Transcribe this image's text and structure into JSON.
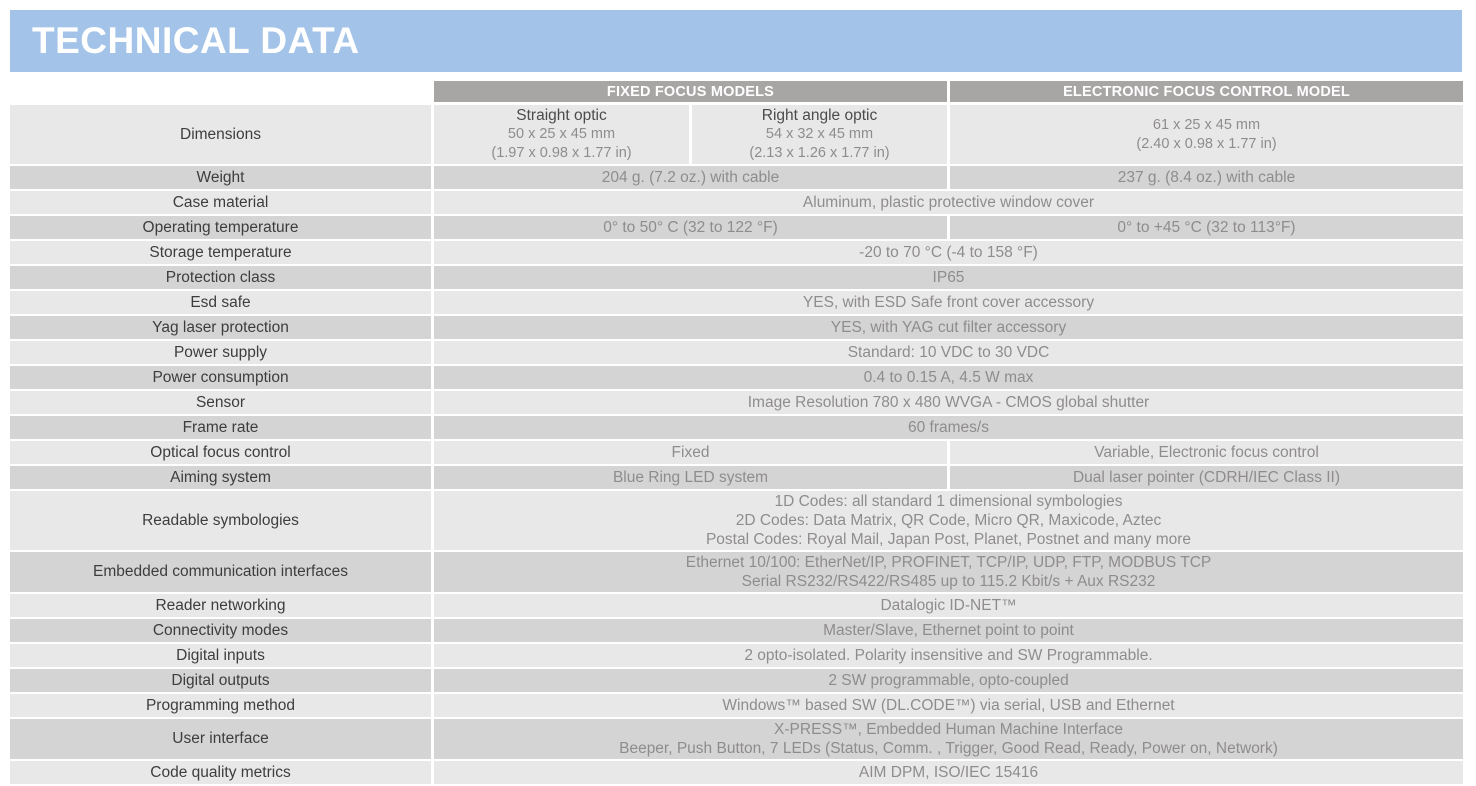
{
  "title": "TECHNICAL DATA",
  "colors": {
    "banner_blue": "#a4c3e8",
    "header_gray": "#a8a5a5",
    "row_light": "#e9e8e8",
    "row_dark": "#d5d4d4",
    "label_text": "#3d3d3d",
    "value_text": "#8e8c8c",
    "subhead_text": "#4b4b4b"
  },
  "table": {
    "column_headers": {
      "fixed": "FIXED FOCUS MODELS",
      "electronic": "ELECTRONIC FOCUS CONTROL MODEL"
    },
    "rows": [
      {
        "label": "Dimensions",
        "span": "three",
        "cells": [
          {
            "head": "Straight optic",
            "lines": [
              "50 x 25 x 45 mm",
              "(1.97 x 0.98 x 1.77 in)"
            ]
          },
          {
            "head": "Right angle optic",
            "lines": [
              "54 x 32 x 45 mm",
              "(2.13 x 1.26 x 1.77 in)"
            ]
          },
          {
            "head": "",
            "lines": [
              "61 x 25 x 45 mm",
              "(2.40 x 0.98 x 1.77 in)"
            ]
          }
        ]
      },
      {
        "label": "Weight",
        "span": "two",
        "cells": [
          {
            "head": "",
            "lines": [
              "204 g. (7.2 oz.) with cable"
            ]
          },
          {
            "head": "",
            "lines": [
              "237 g. (8.4 oz.) with cable"
            ]
          }
        ]
      },
      {
        "label": "Case material",
        "span": "full",
        "cells": [
          {
            "head": "",
            "lines": [
              "Aluminum, plastic protective window cover"
            ]
          }
        ]
      },
      {
        "label": "Operating temperature",
        "span": "two",
        "cells": [
          {
            "head": "",
            "lines": [
              "0° to 50° C (32 to 122 °F)"
            ]
          },
          {
            "head": "",
            "lines": [
              "0° to +45 °C (32 to 113°F)"
            ]
          }
        ]
      },
      {
        "label": "Storage temperature",
        "span": "full",
        "cells": [
          {
            "head": "",
            "lines": [
              "-20 to 70 °C (-4 to 158 °F)"
            ]
          }
        ]
      },
      {
        "label": "Protection class",
        "span": "full",
        "cells": [
          {
            "head": "",
            "lines": [
              "IP65"
            ]
          }
        ]
      },
      {
        "label": "Esd safe",
        "span": "full",
        "cells": [
          {
            "head": "",
            "lines": [
              "YES, with ESD Safe front cover accessory"
            ]
          }
        ]
      },
      {
        "label": "Yag laser protection",
        "span": "full",
        "cells": [
          {
            "head": "",
            "lines": [
              "YES, with YAG cut filter accessory"
            ]
          }
        ]
      },
      {
        "label": "Power supply",
        "span": "full",
        "cells": [
          {
            "head": "",
            "lines": [
              "Standard: 10 VDC to 30 VDC"
            ]
          }
        ]
      },
      {
        "label": "Power consumption",
        "span": "full",
        "cells": [
          {
            "head": "",
            "lines": [
              "0.4 to 0.15 A, 4.5 W max"
            ]
          }
        ]
      },
      {
        "label": "Sensor",
        "span": "full",
        "cells": [
          {
            "head": "",
            "lines": [
              "Image Resolution 780 x 480 WVGA -  CMOS global shutter"
            ]
          }
        ]
      },
      {
        "label": "Frame rate",
        "span": "full",
        "cells": [
          {
            "head": "",
            "lines": [
              "60 frames/s"
            ]
          }
        ]
      },
      {
        "label": "Optical focus control",
        "span": "two",
        "cells": [
          {
            "head": "",
            "lines": [
              "Fixed"
            ]
          },
          {
            "head": "",
            "lines": [
              "Variable,  Electronic focus control"
            ]
          }
        ]
      },
      {
        "label": "Aiming system",
        "span": "two",
        "cells": [
          {
            "head": "",
            "lines": [
              "Blue Ring LED system"
            ]
          },
          {
            "head": "",
            "lines": [
              "Dual laser pointer (CDRH/IEC Class II)"
            ]
          }
        ]
      },
      {
        "label": "Readable symbologies",
        "span": "full",
        "cells": [
          {
            "head": "",
            "lines": [
              "1D Codes:  all standard 1 dimensional symbologies",
              "2D Codes: Data Matrix, QR Code, Micro QR, Maxicode, Aztec",
              "Postal Codes: Royal Mail, Japan Post, Planet, Postnet and many more"
            ]
          }
        ]
      },
      {
        "label": "Embedded communication interfaces",
        "span": "full",
        "cells": [
          {
            "head": "",
            "lines": [
              "Ethernet 10/100: EtherNet/IP, PROFINET, TCP/IP, UDP, FTP, MODBUS TCP",
              "Serial RS232/RS422/RS485 up to 115.2 Kbit/s + Aux RS232"
            ]
          }
        ]
      },
      {
        "label": "Reader networking",
        "span": "full",
        "cells": [
          {
            "head": "",
            "lines": [
              "Datalogic ID-NET™"
            ]
          }
        ]
      },
      {
        "label": "Connectivity modes",
        "span": "full",
        "cells": [
          {
            "head": "",
            "lines": [
              "Master/Slave, Ethernet point to point"
            ]
          }
        ]
      },
      {
        "label": "Digital inputs",
        "span": "full",
        "cells": [
          {
            "head": "",
            "lines": [
              "2 opto-isolated. Polarity insensitive and SW Programmable."
            ]
          }
        ]
      },
      {
        "label": "Digital outputs",
        "span": "full",
        "cells": [
          {
            "head": "",
            "lines": [
              "2 SW programmable, opto-coupled"
            ]
          }
        ]
      },
      {
        "label": "Programming method",
        "span": "full",
        "cells": [
          {
            "head": "",
            "lines": [
              "Windows™ based SW (DL.CODE™) via serial, USB and Ethernet"
            ]
          }
        ]
      },
      {
        "label": "User interface",
        "span": "full",
        "cells": [
          {
            "head": "",
            "lines": [
              "X-PRESS™, Embedded Human Machine Interface",
              "Beeper, Push Button, 7 LEDs (Status, Comm. , Trigger, Good Read, Ready, Power on, Network)"
            ]
          }
        ]
      },
      {
        "label": "Code quality metrics",
        "span": "full",
        "cells": [
          {
            "head": "",
            "lines": [
              "AIM DPM, ISO/IEC 15416"
            ]
          }
        ]
      }
    ]
  }
}
